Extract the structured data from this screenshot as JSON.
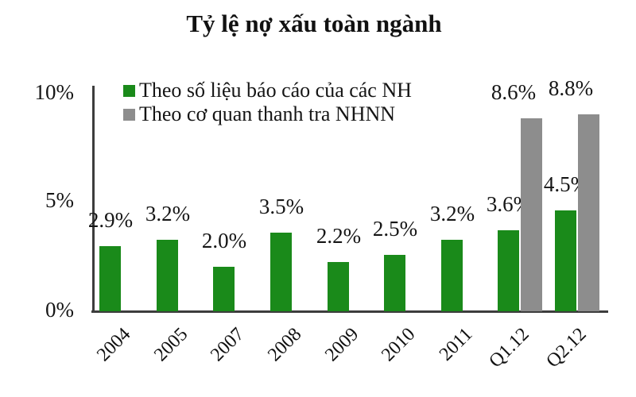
{
  "title": "Tỷ lệ nợ xấu toàn ngành",
  "y_axis": {
    "ticks": [
      "10%",
      "5%",
      "0%"
    ]
  },
  "legend": {
    "items": [
      {
        "label": "Theo số liệu báo cáo của các NH",
        "color": "#1a8a1a"
      },
      {
        "label": "Theo cơ quan thanh tra NHNN",
        "color": "#8d8d8d"
      }
    ]
  },
  "chart_data": {
    "type": "bar",
    "title": "Tỷ lệ nợ xấu toàn ngành",
    "categories": [
      "2004",
      "2005",
      "2007",
      "2008",
      "2009",
      "2010",
      "2011",
      "Q1.12",
      "Q2.12"
    ],
    "series": [
      {
        "name": "Theo số liệu báo cáo của các NH",
        "color": "#1a8a1a",
        "values": [
          2.9,
          3.2,
          2.0,
          3.5,
          2.2,
          2.5,
          3.2,
          3.6,
          4.5
        ],
        "labels": [
          "2.9%",
          "3.2%",
          "2.0%",
          "3.5%",
          "2.2%",
          "2.5%",
          "3.2%",
          "3.6%",
          "4.5%"
        ]
      },
      {
        "name": "Theo cơ quan thanh tra NHNN",
        "color": "#8d8d8d",
        "values": [
          null,
          null,
          null,
          null,
          null,
          null,
          null,
          8.6,
          8.8
        ],
        "labels": [
          null,
          null,
          null,
          null,
          null,
          null,
          null,
          "8.6%",
          "8.8%"
        ]
      }
    ],
    "xlabel": "",
    "ylabel": "",
    "ylim": [
      0,
      10
    ],
    "y_tick_labels": [
      "0%",
      "5%",
      "10%"
    ],
    "grid": false,
    "legend_position": "top-left-inside",
    "data_labels": true
  }
}
